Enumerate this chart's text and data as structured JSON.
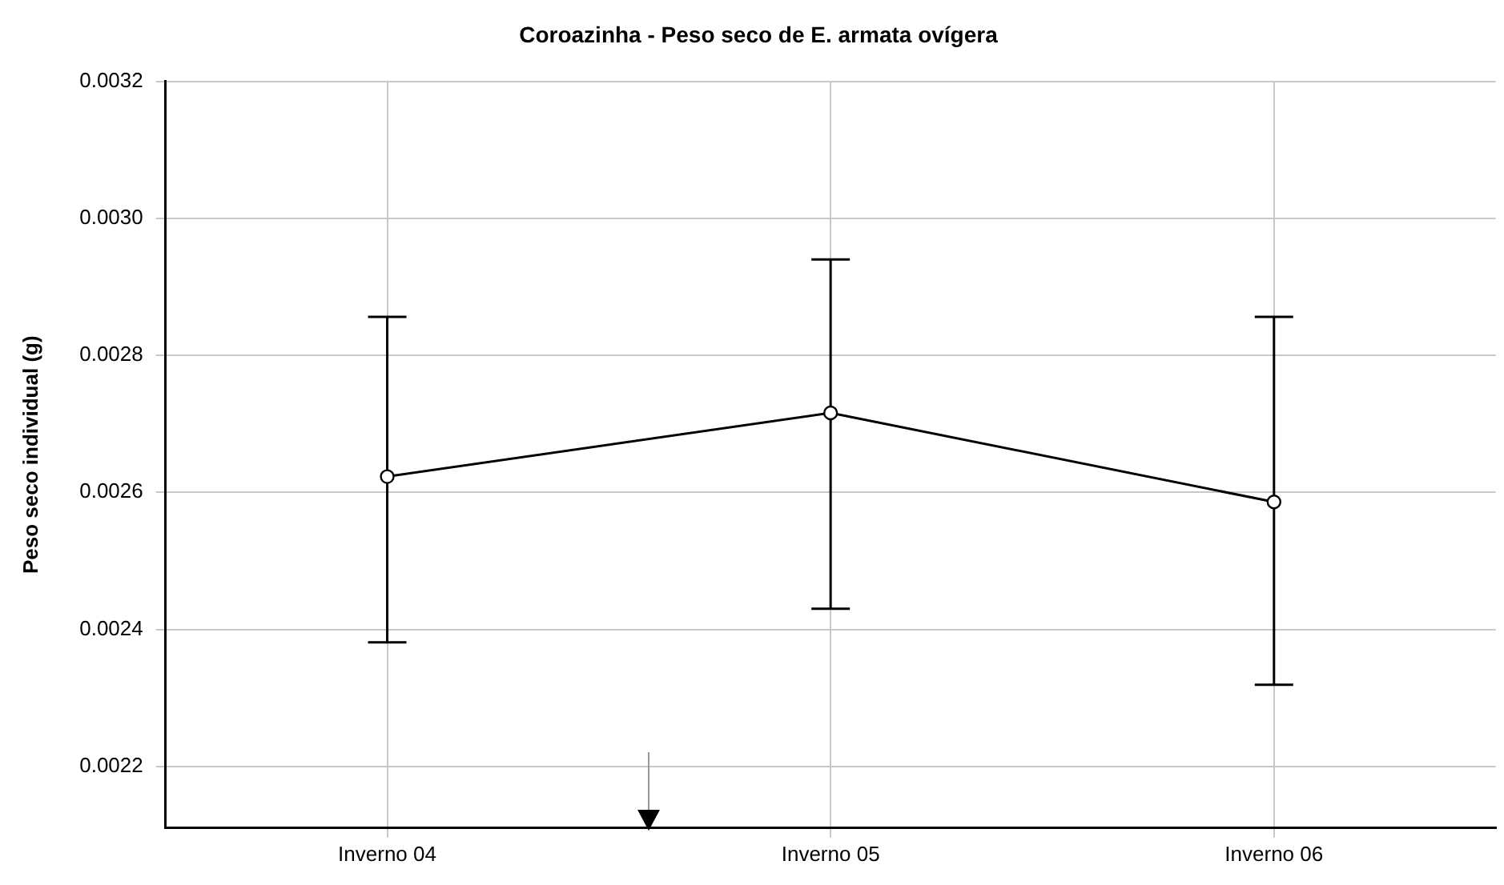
{
  "chart_data": {
    "type": "line",
    "title": "Coroazinha - Peso seco de E. armata ovígera",
    "ylabel": "Peso seco individual (g)",
    "categories": [
      "Inverno 04",
      "Inverno 05",
      "Inverno 06"
    ],
    "series": [
      {
        "color": "#000000",
        "values": [
          0.002623,
          0.002716,
          0.002586
        ],
        "errors": [
          [
            0.002381,
            0.002856
          ],
          [
            0.00243,
            0.00294
          ],
          [
            0.002319,
            0.002856
          ]
        ]
      }
    ],
    "ylim": [
      0.00211,
      0.0032
    ],
    "yticks": [
      {
        "value": 0.0022,
        "label": "0.0022"
      },
      {
        "value": 0.0024,
        "label": "0.0024"
      },
      {
        "value": 0.0026,
        "label": "0.0026"
      },
      {
        "value": 0.0028,
        "label": "0.0028"
      },
      {
        "value": 0.003,
        "label": "0.0030"
      },
      {
        "value": 0.0032,
        "label": "0.0032"
      }
    ],
    "grid": true,
    "legend": false,
    "marker": "circle",
    "line_style": "solid"
  }
}
